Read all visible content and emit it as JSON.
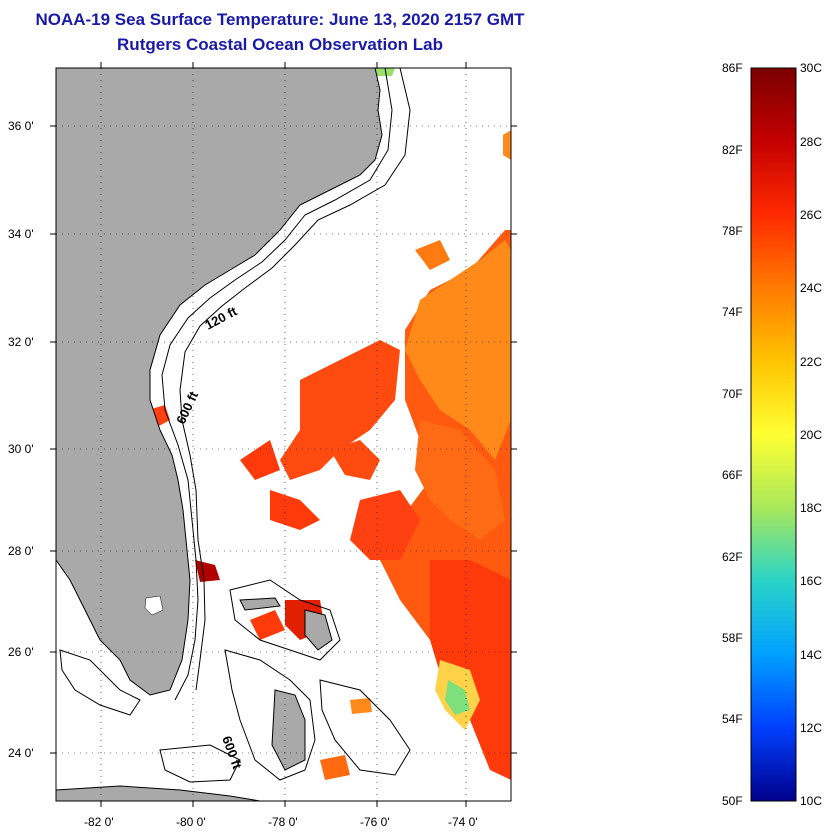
{
  "title": "NOAA-19 Sea Surface Temperature:  June 13, 2020 2157 GMT",
  "subtitle": "Rutgers Coastal Ocean Observation Lab",
  "latitude_ticks": [
    "36 0'",
    "34 0'",
    "32 0'",
    "30 0'",
    "28 0'",
    "26 0'",
    "24 0'"
  ],
  "longitude_ticks": [
    "-82 0'",
    "-80 0'",
    "-78 0'",
    "-76 0'",
    "-74 0'"
  ],
  "contour_labels": [
    "120 ft",
    "600 ft",
    "600 ft"
  ],
  "colorbar": {
    "fahrenheit": [
      "86F",
      "82F",
      "78F",
      "74F",
      "70F",
      "66F",
      "62F",
      "58F",
      "54F",
      "50F"
    ],
    "celsius": [
      "30C",
      "28C",
      "26C",
      "24C",
      "22C",
      "20C",
      "18C",
      "16C",
      "14C",
      "12C",
      "10C"
    ],
    "colors": [
      "#7a0000",
      "#c40000",
      "#ff2a00",
      "#ff7a00",
      "#ffc400",
      "#ffff33",
      "#a8e85a",
      "#2ad4c8",
      "#00a0ff",
      "#0040ff",
      "#00008a"
    ]
  },
  "colors": {
    "land": "#a9a9a9",
    "ocean_no_data": "#ffffff",
    "title": "#1a1aa8"
  }
}
